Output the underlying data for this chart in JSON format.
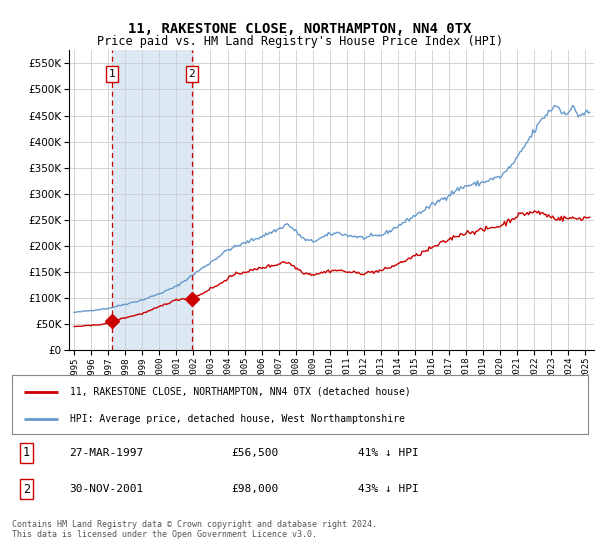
{
  "title": "11, RAKESTONE CLOSE, NORTHAMPTON, NN4 0TX",
  "subtitle": "Price paid vs. HM Land Registry's House Price Index (HPI)",
  "legend_label_red": "11, RAKESTONE CLOSE, NORTHAMPTON, NN4 0TX (detached house)",
  "legend_label_blue": "HPI: Average price, detached house, West Northamptonshire",
  "footer": "Contains HM Land Registry data © Crown copyright and database right 2024.\nThis data is licensed under the Open Government Licence v3.0.",
  "transactions": [
    {
      "id": 1,
      "date": "27-MAR-1997",
      "year": 1997.23,
      "price": 56500,
      "label": "1"
    },
    {
      "id": 2,
      "date": "30-NOV-2001",
      "year": 2001.91,
      "price": 98000,
      "label": "2"
    }
  ],
  "transaction_table": [
    {
      "num": "1",
      "date": "27-MAR-1997",
      "price": "£56,500",
      "pct": "41% ↓ HPI"
    },
    {
      "num": "2",
      "date": "30-NOV-2001",
      "price": "£98,000",
      "pct": "43% ↓ HPI"
    }
  ],
  "ylim": [
    0,
    575000
  ],
  "xlim_start": 1994.7,
  "xlim_end": 2025.5,
  "plot_bg": "#ffffff",
  "red_color": "#cc0000",
  "blue_color": "#6699cc",
  "shade_color": "#dce9f5",
  "grid_color": "#cccccc"
}
